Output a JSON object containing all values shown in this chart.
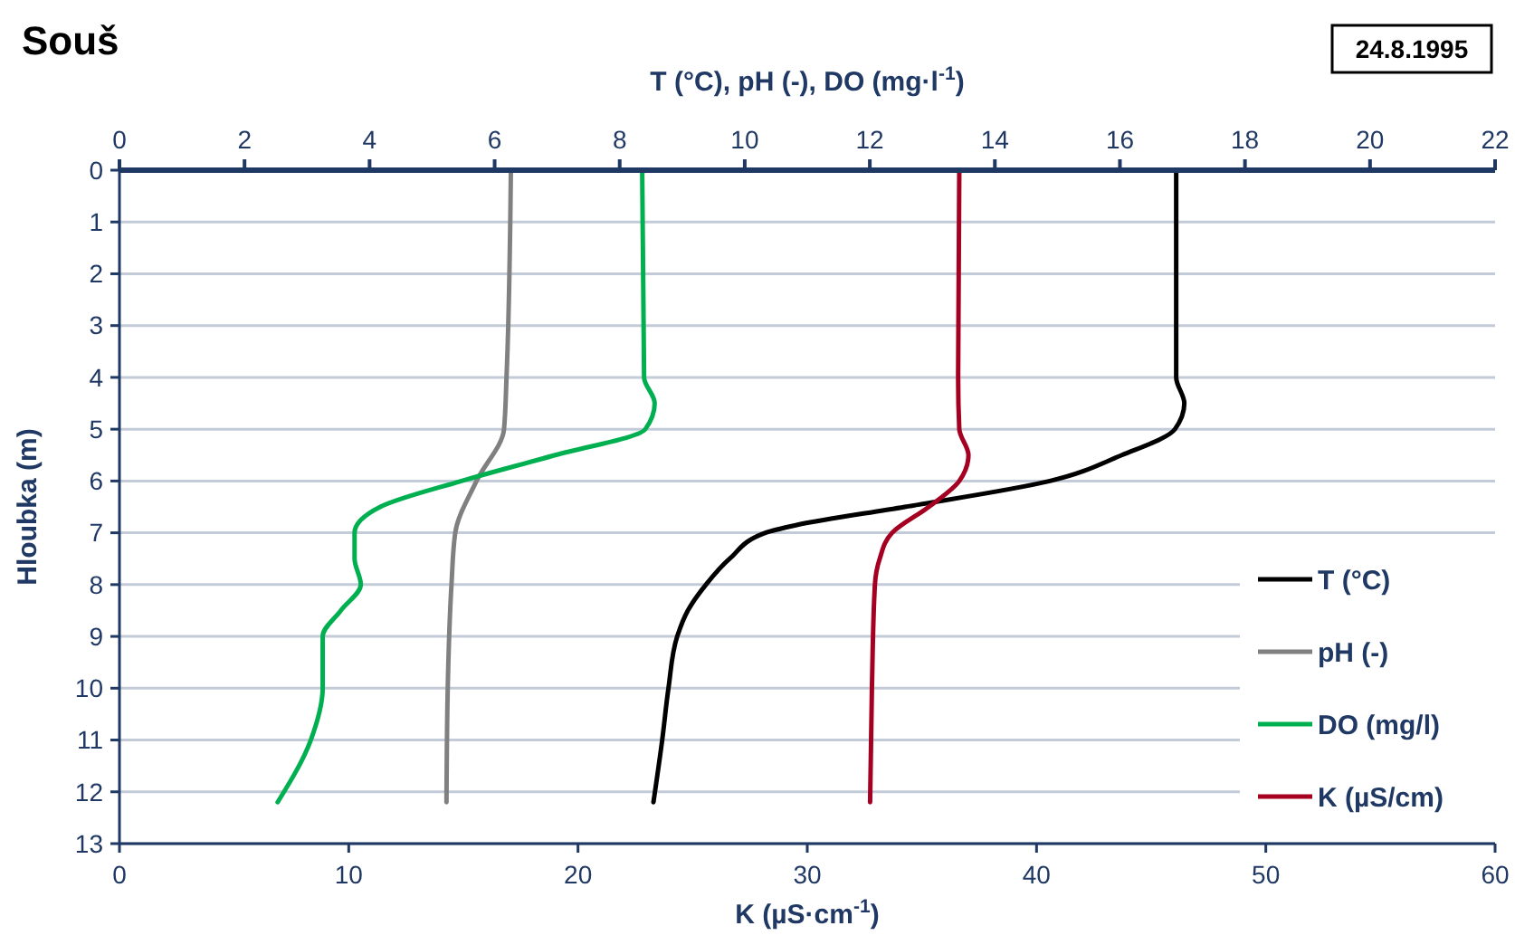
{
  "chart_data": {
    "type": "line",
    "title": "Souš",
    "annotations": [
      "24.8.1995"
    ],
    "xlabel": "K (µS·cm$^{-1}$)",
    "x2label": "T (°C), pH (-), DO (mg·l$^{-1}$)",
    "ylabel": "Hloubka (m)",
    "xlim": [
      0,
      60
    ],
    "xticks": [
      0,
      10,
      20,
      30,
      40,
      50,
      60
    ],
    "x2lim": [
      0,
      22
    ],
    "x2ticks": [
      0,
      2,
      4,
      6,
      8,
      10,
      12,
      14,
      16,
      18,
      20,
      22
    ],
    "ylim": [
      13,
      0
    ],
    "yticks": [
      0,
      1,
      2,
      3,
      4,
      5,
      6,
      7,
      8,
      9,
      10,
      11,
      12,
      13
    ],
    "grid": "y",
    "legend": "bottom right",
    "series": [
      {
        "name": "T (°C)",
        "color": "#000000",
        "axis": "x2",
        "x": [
          16.9,
          16.9,
          17.03,
          16.88,
          16.03,
          14.88,
          12.56,
          10.83,
          10.33,
          9.76,
          9.38,
          9.09,
          8.92,
          8.78,
          8.68,
          8.54
        ],
        "values": [
          0,
          4,
          4.5,
          5,
          5.5,
          6,
          6.5,
          6.85,
          7,
          7.5,
          8,
          8.5,
          9,
          10,
          11,
          12.2
        ]
      },
      {
        "name": "pH (-)",
        "color": "#808080",
        "axis": "x2",
        "x": [
          6.26,
          6.19,
          6.15,
          5.71,
          5.37,
          5.31,
          5.25,
          5.23
        ],
        "values": [
          0,
          4,
          5,
          6,
          7,
          8,
          10,
          12.2
        ]
      },
      {
        "name": "DO (mg/l)",
        "color": "#00b050",
        "axis": "x2",
        "x": [
          8.36,
          8.39,
          8.56,
          8.41,
          6.97,
          5.47,
          4.17,
          3.76,
          3.76,
          3.86,
          3.54,
          3.25,
          3.25,
          3.06,
          2.53
        ],
        "values": [
          0,
          4,
          4.5,
          5,
          5.5,
          6,
          6.5,
          7,
          7.5,
          8,
          8.5,
          9,
          10,
          11,
          12.2
        ]
      },
      {
        "name": "K (µS/cm)",
        "color": "#a50021",
        "x": [
          36.63,
          36.58,
          36.63,
          37.03,
          36.63,
          35.3,
          33.7,
          33.16,
          32.95,
          32.82,
          32.74
        ],
        "values": [
          0,
          4,
          5,
          5.5,
          6,
          6.5,
          7,
          7.5,
          8,
          10,
          12.2
        ]
      }
    ]
  }
}
